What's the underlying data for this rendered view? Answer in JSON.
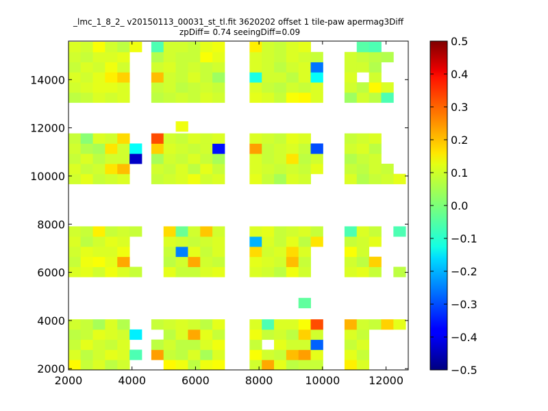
{
  "chart_data": {
    "type": "heatmap",
    "title": "_lmc_1_8_2_ v20150113_00031_st_tl.fit 3620202 offset 1 tile-paw apermag3Diff",
    "subtitle": "zpDiff= 0.74 seeingDiff=0.09",
    "xlabel": "",
    "ylabel": "",
    "xlim": [
      2000,
      12700
    ],
    "ylim": [
      1950,
      15600
    ],
    "x_ticks": [
      "2000",
      "4000",
      "6000",
      "8000",
      "10000",
      "12000"
    ],
    "y_ticks": [
      "2000",
      "4000",
      "6000",
      "8000",
      "10000",
      "12000",
      "14000"
    ],
    "cell_size": [
      385,
      420
    ],
    "colorbar": {
      "colormap": "jet",
      "vmin": -0.5,
      "vmax": 0.5,
      "ticks": [
        "0.5",
        "0.4",
        "0.3",
        "0.2",
        "0.1",
        "0.0",
        "−0.1",
        "−0.2",
        "−0.3",
        "−0.4",
        "−0.5"
      ]
    },
    "x_centers": [
      2190,
      2575,
      2960,
      3345,
      3730,
      4115,
      4800,
      5185,
      5570,
      5955,
      6340,
      6725,
      7895,
      8280,
      8665,
      9050,
      9435,
      9820,
      10885,
      11270,
      11655,
      12040,
      12425
    ],
    "blocks": [
      {
        "y_centers": [
          2160,
          2580,
          3000,
          3420,
          3840
        ],
        "rows": [
          [
            0.13,
            0.07,
            0.09,
            0.06,
            0.08,
            null,
            null,
            0.13,
            0.11,
            0.06,
            0.11,
            0.12,
            0.08,
            0.21,
            0.1,
            0.06,
            0.07,
            0.07,
            0.14,
            0.09,
            null,
            null,
            null
          ],
          [
            0.09,
            0.06,
            0.08,
            0.1,
            0.09,
            -0.05,
            0.22,
            0.07,
            0.06,
            0.09,
            0.04,
            0.09,
            0.12,
            0.08,
            0.07,
            0.19,
            0.22,
            0.1,
            0.1,
            0.07,
            null,
            null,
            null
          ],
          [
            0.07,
            0.1,
            0.08,
            0.07,
            0.09,
            null,
            0.06,
            0.08,
            0.06,
            0.06,
            0.09,
            0.11,
            0.07,
            null,
            0.1,
            0.08,
            0.08,
            -0.28,
            0.07,
            0.09,
            null,
            null,
            null
          ],
          [
            0.06,
            0.07,
            0.1,
            0.09,
            0.08,
            -0.14,
            null,
            0.06,
            0.09,
            0.21,
            0.1,
            0.07,
            0.11,
            0.07,
            0.08,
            0.06,
            0.17,
            0.08,
            0.09,
            0.07,
            null,
            null,
            null
          ],
          [
            0.08,
            0.07,
            0.04,
            0.09,
            0.05,
            null,
            0.07,
            0.08,
            0.09,
            0.08,
            0.06,
            0.1,
            0.09,
            -0.05,
            0.09,
            0.09,
            0.12,
            0.3,
            0.2,
            0.08,
            0.07,
            0.17,
            0.1
          ]
        ]
      },
      {
        "y_centers": [
          4730
        ],
        "rows": [
          [
            null,
            null,
            null,
            null,
            null,
            null,
            null,
            null,
            null,
            null,
            null,
            null,
            null,
            null,
            null,
            null,
            -0.03,
            null,
            null,
            null,
            null,
            null,
            null
          ]
        ]
      },
      {
        "y_centers": [
          6020,
          6440,
          6860,
          7280,
          7700
        ],
        "rows": [
          [
            0.09,
            0.1,
            0.08,
            0.11,
            0.09,
            0.07,
            null,
            0.1,
            0.07,
            0.07,
            0.09,
            0.1,
            0.09,
            0.08,
            0.06,
            0.11,
            0.08,
            null,
            0.09,
            0.1,
            0.07,
            null,
            0.06
          ],
          [
            0.07,
            0.11,
            0.12,
            0.1,
            0.21,
            null,
            null,
            0.06,
            0.08,
            0.21,
            0.08,
            0.07,
            0.1,
            0.09,
            0.08,
            0.19,
            0.07,
            null,
            0.08,
            0.06,
            0.17,
            null,
            null
          ],
          [
            0.08,
            0.1,
            0.09,
            0.09,
            0.11,
            null,
            null,
            0.07,
            -0.25,
            0.1,
            0.07,
            0.09,
            0.16,
            0.08,
            0.09,
            0.16,
            0.09,
            null,
            0.12,
            0.08,
            null,
            null,
            null
          ],
          [
            0.09,
            0.06,
            0.08,
            0.1,
            0.09,
            null,
            null,
            0.09,
            0.08,
            0.07,
            0.08,
            0.09,
            -0.2,
            0.09,
            0.07,
            0.1,
            0.06,
            0.15,
            0.07,
            0.08,
            0.1,
            null,
            null
          ],
          [
            0.08,
            0.07,
            0.14,
            0.07,
            0.08,
            0.07,
            null,
            0.16,
            -0.02,
            0.08,
            0.18,
            0.08,
            0.09,
            0.1,
            0.07,
            0.08,
            0.09,
            0.07,
            -0.05,
            0.09,
            0.07,
            null,
            -0.05
          ]
        ]
      },
      {
        "y_centers": [
          9880,
          10300,
          10720,
          11140,
          11560
        ],
        "rows": [
          [
            0.08,
            0.1,
            0.07,
            0.08,
            0.09,
            null,
            0.07,
            0.08,
            0.09,
            0.11,
            0.08,
            0.09,
            0.1,
            0.07,
            0.04,
            0.09,
            0.08,
            null,
            0.09,
            0.05,
            0.07,
            0.08,
            0.1
          ],
          [
            0.09,
            0.07,
            0.08,
            0.15,
            0.19,
            null,
            0.08,
            0.07,
            0.09,
            0.06,
            0.1,
            0.07,
            0.09,
            0.08,
            0.07,
            0.08,
            0.07,
            0.1,
            0.07,
            0.06,
            0.08,
            0.07,
            null
          ],
          [
            0.07,
            0.09,
            0.06,
            0.08,
            0.08,
            -0.43,
            0.04,
            0.08,
            0.07,
            0.09,
            0.07,
            0.04,
            0.09,
            0.07,
            0.08,
            0.15,
            0.06,
            0.08,
            0.05,
            0.07,
            0.08,
            null,
            null
          ],
          [
            0.08,
            0.05,
            0.04,
            0.15,
            0.08,
            -0.12,
            0.17,
            0.09,
            0.08,
            0.07,
            0.08,
            -0.36,
            0.22,
            0.07,
            0.08,
            0.09,
            0.07,
            -0.3,
            0.08,
            0.09,
            0.06,
            null,
            null
          ],
          [
            0.07,
            0.01,
            0.09,
            0.08,
            0.16,
            null,
            0.3,
            0.08,
            0.07,
            0.09,
            0.08,
            0.09,
            0.09,
            0.08,
            0.07,
            0.1,
            0.09,
            null,
            0.07,
            0.08,
            0.09,
            null,
            null
          ]
        ]
      },
      {
        "y_centers": [
          12060
        ],
        "rows": [
          [
            null,
            null,
            null,
            null,
            null,
            null,
            null,
            null,
            0.11,
            null,
            null,
            null,
            null,
            null,
            null,
            null,
            null,
            null,
            null,
            null,
            null,
            null,
            null
          ]
        ]
      },
      {
        "y_centers": [
          13260,
          13680,
          14100,
          14520,
          14940,
          15360
        ],
        "rows": [
          [
            0.06,
            0.07,
            0.09,
            0.08,
            0.09,
            null,
            0.06,
            0.07,
            0.08,
            0.07,
            0.09,
            0.08,
            0.1,
            0.09,
            0.07,
            0.12,
            0.13,
            0.09,
            0.03,
            0.08,
            0.06,
            -0.05,
            null
          ],
          [
            0.08,
            0.09,
            0.1,
            0.1,
            0.09,
            null,
            0.07,
            0.08,
            0.06,
            0.07,
            0.08,
            0.07,
            0.09,
            0.07,
            0.06,
            0.08,
            0.07,
            0.09,
            0.08,
            0.06,
            0.13,
            0.09,
            null
          ],
          [
            0.09,
            0.08,
            0.1,
            0.14,
            0.17,
            null,
            0.19,
            0.08,
            0.07,
            0.09,
            0.07,
            0.03,
            -0.1,
            0.08,
            0.08,
            0.06,
            0.09,
            -0.12,
            0.09,
            null,
            0.08,
            null,
            null
          ],
          [
            0.07,
            0.09,
            0.08,
            0.11,
            0.08,
            null,
            0.08,
            0.09,
            0.07,
            0.08,
            0.07,
            0.08,
            0.09,
            0.08,
            0.06,
            0.08,
            0.09,
            -0.26,
            0.08,
            0.08,
            0.05,
            null,
            null
          ],
          [
            0.08,
            0.07,
            0.09,
            0.09,
            0.1,
            null,
            0.05,
            0.08,
            0.07,
            0.07,
            0.12,
            0.1,
            0.09,
            0.08,
            0.07,
            0.09,
            0.08,
            0.07,
            0.08,
            0.07,
            0.06,
            0.05,
            null
          ],
          [
            0.09,
            0.08,
            0.12,
            0.08,
            0.06,
            0.11,
            -0.05,
            0.08,
            0.08,
            0.07,
            0.1,
            0.11,
            0.14,
            0.08,
            0.07,
            0.09,
            0.1,
            null,
            null,
            -0.04,
            -0.05,
            null,
            null
          ]
        ]
      }
    ]
  }
}
